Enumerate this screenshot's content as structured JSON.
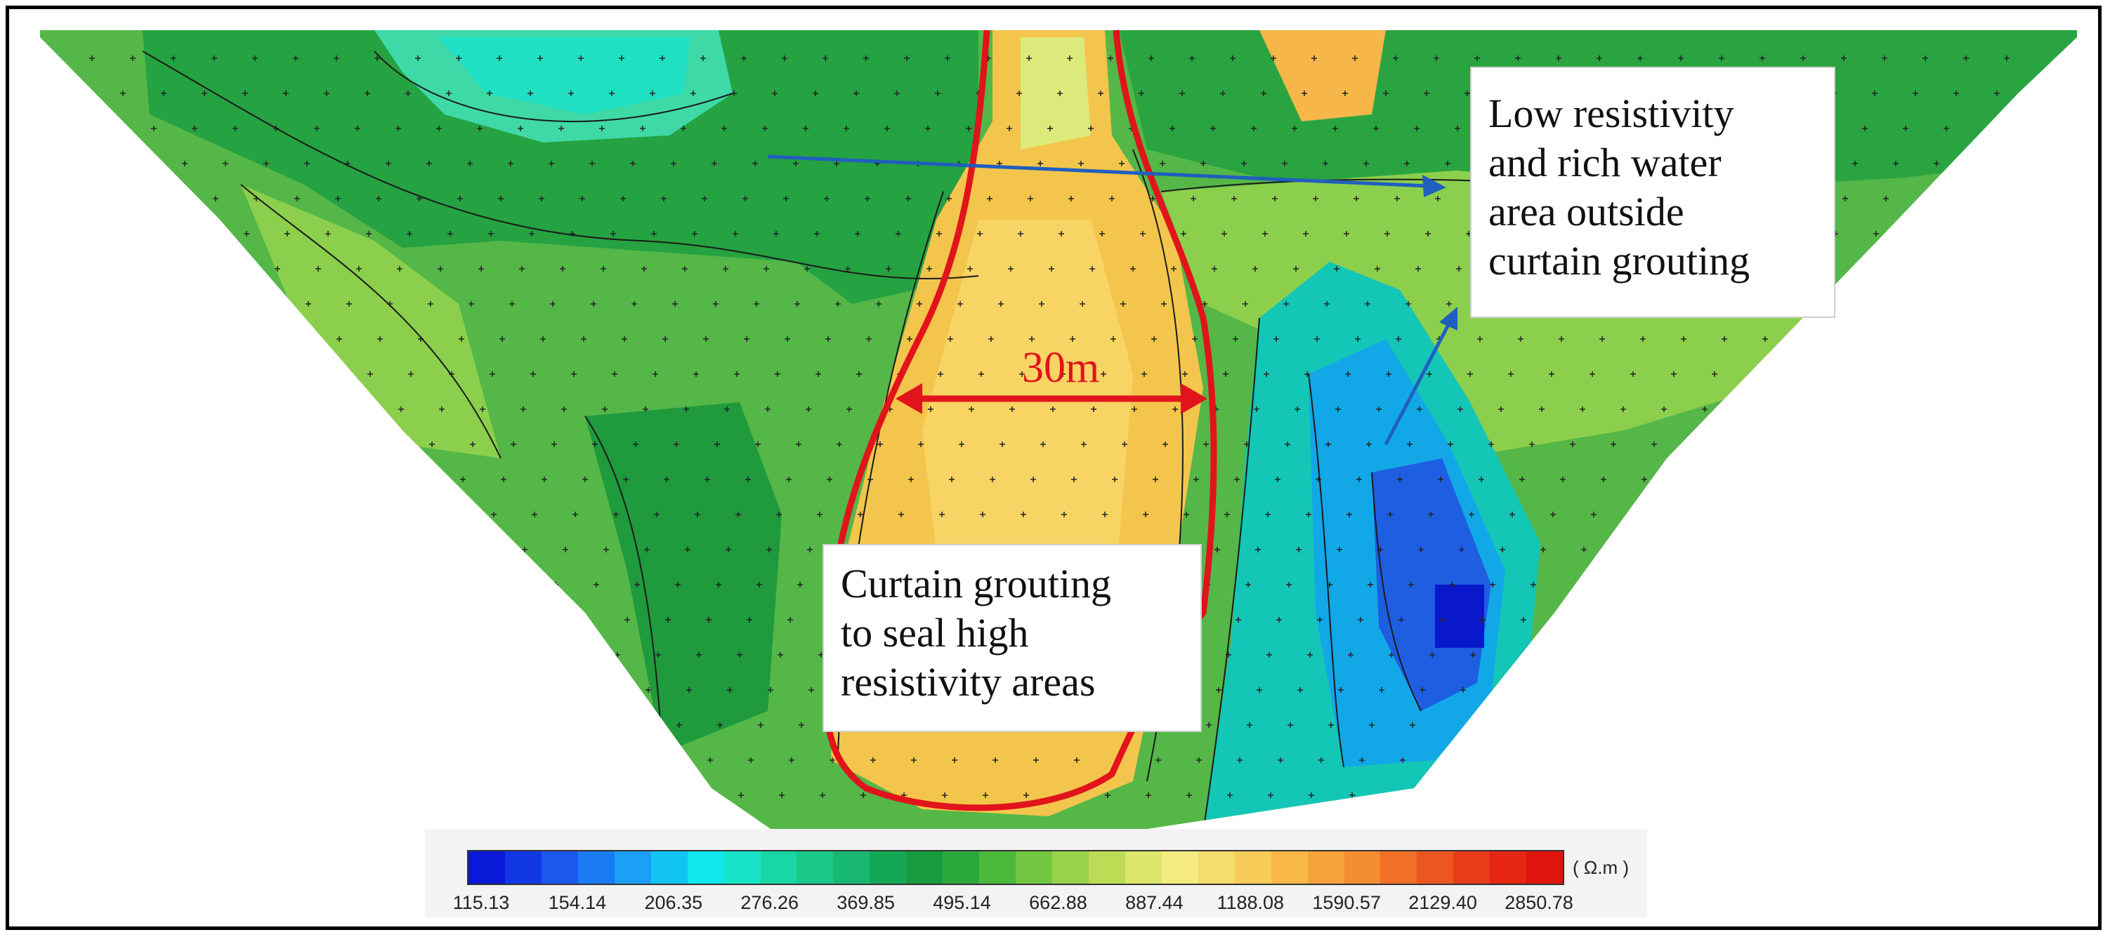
{
  "callouts": {
    "low_resistivity": [
      "Low resistivity",
      "and rich water",
      "area outside",
      "curtain grouting"
    ],
    "curtain": [
      "Curtain grouting",
      "to seal high",
      "resistivity areas"
    ]
  },
  "dimension_label": "30m",
  "legend": {
    "unit": "( Ω.m )",
    "ticks": [
      "115.13",
      "154.14",
      "206.35",
      "276.26",
      "369.85",
      "495.14",
      "662.88",
      "887.44",
      "1188.08",
      "1590.57",
      "2129.40",
      "2850.78"
    ],
    "colors": [
      "#0a18d8",
      "#1238e6",
      "#1a58ee",
      "#1a7cf2",
      "#1aa0f4",
      "#12c4f2",
      "#10e6ec",
      "#18e4c8",
      "#18d6a6",
      "#1ac88a",
      "#18b870",
      "#14a854",
      "#189a3e",
      "#2aa83c",
      "#4cb83c",
      "#72c640",
      "#98d248",
      "#bcdc56",
      "#dce66a",
      "#f4ea80",
      "#f6dc6a",
      "#f8cc58",
      "#f8b848",
      "#f6a23a",
      "#f48c30",
      "#f07028",
      "#ec5620",
      "#e83c18",
      "#e42612",
      "#e0140e"
    ]
  },
  "colors": {
    "annotation_red": "#e1141b",
    "arrow_blue": "#1f5fbf"
  }
}
